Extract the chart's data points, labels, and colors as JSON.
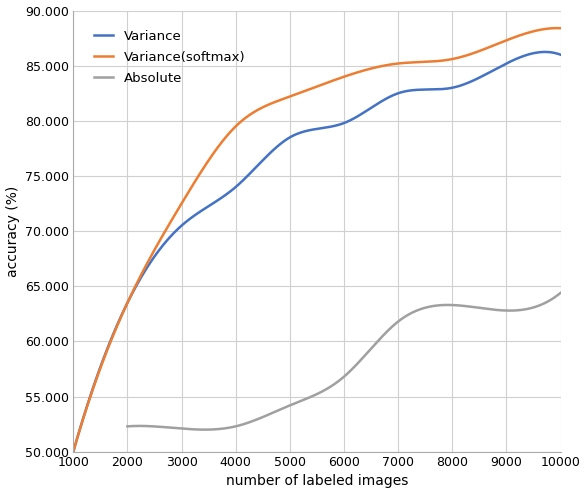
{
  "x": [
    1000,
    2000,
    3000,
    4000,
    5000,
    6000,
    7000,
    8000,
    9000,
    10000
  ],
  "variance": [
    50.0,
    63.5,
    70.5,
    74.0,
    78.5,
    79.8,
    82.5,
    83.0,
    85.2,
    86.0
  ],
  "variance_softmax": [
    50.0,
    63.5,
    72.5,
    79.5,
    82.2,
    84.0,
    85.2,
    85.6,
    87.3,
    88.4
  ],
  "absolute": [
    null,
    52.3,
    52.1,
    52.3,
    54.2,
    56.8,
    61.8,
    63.3,
    62.8,
    64.4
  ],
  "line_colors": {
    "variance": "#4472C4",
    "variance_softmax": "#ED7D31",
    "absolute": "#A0A0A0"
  },
  "xlabel": "number of labeled images",
  "ylabel": "accuracy (%)",
  "ylim": [
    50.0,
    90.0
  ],
  "xlim": [
    1000,
    10000
  ],
  "yticks": [
    50.0,
    55.0,
    60.0,
    65.0,
    70.0,
    75.0,
    80.0,
    85.0,
    90.0
  ],
  "xticks": [
    1000,
    2000,
    3000,
    4000,
    5000,
    6000,
    7000,
    8000,
    9000,
    10000
  ],
  "legend_labels": [
    "Variance",
    "Variance(softmax)",
    "Absolute"
  ],
  "plot_bg_color": "#ffffff",
  "fig_bg_color": "#ffffff",
  "grid_color": "#d0d0d0",
  "linewidth": 1.8
}
